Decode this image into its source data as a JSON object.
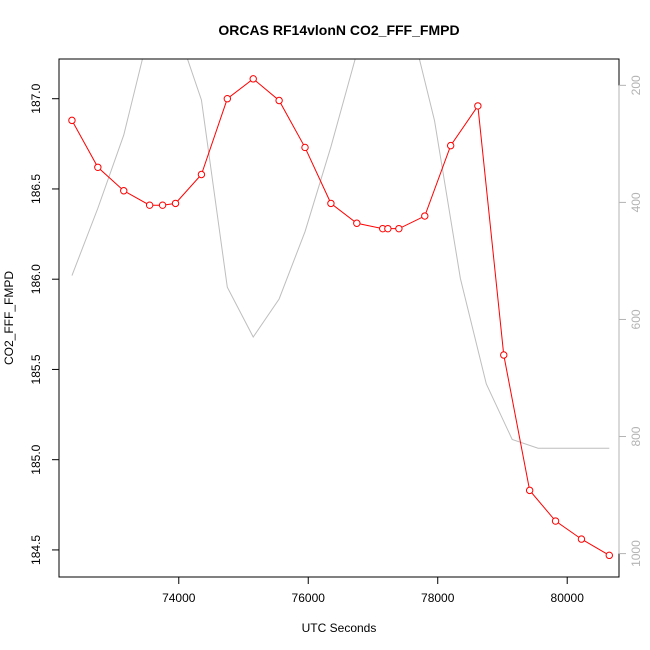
{
  "chart_data": {
    "type": "line",
    "title": "ORCAS RF14vlonN CO2_FFF_FMPD",
    "xlabel": "UTC Seconds",
    "ylabel": "CO2_FFF_FMPD",
    "xlim": [
      72150,
      80800
    ],
    "ylim": [
      184.35,
      187.22
    ],
    "x_ticks": [
      74000,
      76000,
      78000,
      80000
    ],
    "y_ticks": [
      184.5,
      185.0,
      185.5,
      186.0,
      186.5,
      187.0
    ],
    "y2lim": [
      1040,
      155
    ],
    "y2_ticks": [
      200,
      400,
      600,
      800,
      1000
    ],
    "grid": false,
    "legend": "none",
    "series": [
      {
        "axis": "left",
        "color": "#ff0000",
        "marker": "open-circle",
        "x": [
          72350,
          72750,
          73150,
          73550,
          73750,
          73950,
          74350,
          74750,
          75150,
          75550,
          75950,
          76350,
          76750,
          77150,
          77230,
          77400,
          77800,
          78200,
          78620,
          79020,
          79420,
          79820,
          80220,
          80650
        ],
        "y": [
          186.88,
          186.62,
          186.49,
          186.41,
          186.41,
          186.42,
          186.58,
          187.0,
          187.11,
          186.99,
          186.73,
          186.42,
          186.31,
          186.28,
          186.28,
          186.28,
          186.35,
          186.74,
          186.96,
          185.58,
          184.83,
          184.66,
          184.56,
          184.47
        ]
      },
      {
        "axis": "right",
        "color": "#bebebe",
        "marker": "none",
        "x": [
          72350,
          72750,
          73150,
          73550,
          73950,
          74350,
          74750,
          75150,
          75550,
          75950,
          76350,
          76750,
          77150,
          77550,
          77950,
          78350,
          78750,
          79150,
          79550,
          80000,
          80650
        ],
        "y": [
          525,
          410,
          285,
          105,
          95,
          225,
          545,
          630,
          565,
          450,
          305,
          145,
          40,
          80,
          260,
          530,
          710,
          805,
          820,
          820,
          820
        ]
      }
    ]
  }
}
